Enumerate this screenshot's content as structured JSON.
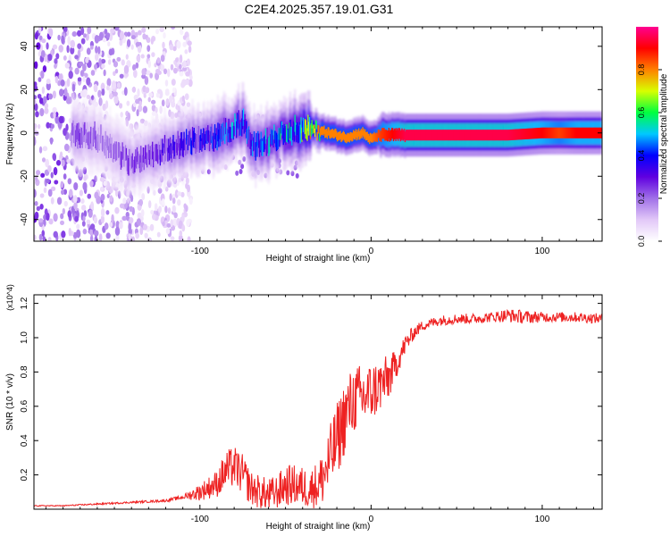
{
  "figure_title": "C2E4.2025.357.19.01.G31",
  "chart_data": [
    {
      "type": "heatmap",
      "title": "C2E4.2025.357.19.01.G31",
      "xlabel": "Height of straight line (km)",
      "ylabel": "Frequency (Hz)",
      "xlim": [
        -197,
        135
      ],
      "ylim": [
        -50,
        49
      ],
      "xticks": [
        -100,
        0,
        100
      ],
      "xtick_labels": [
        "-100",
        "0",
        "100"
      ],
      "yticks": [
        -40,
        -20,
        0,
        20,
        40
      ],
      "ytick_labels": [
        "-40",
        "-20",
        "0",
        "20",
        "40"
      ],
      "colorbar": {
        "label": "Normalized spectral amplitude",
        "range": [
          0.0,
          1.0
        ],
        "ticks": [
          0.0,
          0.2,
          0.4,
          0.6,
          0.8
        ],
        "tick_labels": [
          "0.0",
          "0.2",
          "0.4",
          "0.6",
          "0.8"
        ],
        "colormap": [
          "#ffffff",
          "#e2c8f8",
          "#a070e8",
          "#6000e0",
          "#0000ff",
          "#00c8ff",
          "#00ff40",
          "#d8ff00",
          "#ff8000",
          "#ff0000",
          "#ff0090"
        ]
      },
      "ridge": {
        "x": [
          -175,
          -160,
          -150,
          -140,
          -130,
          -120,
          -110,
          -100,
          -90,
          -80,
          -75,
          -70,
          -60,
          -50,
          -40,
          -30,
          -20,
          -15,
          -10,
          -5,
          0,
          5,
          20,
          40,
          60,
          80,
          100,
          110,
          120,
          135
        ],
        "frequency": [
          0,
          -2,
          -8,
          -14,
          -10,
          -8,
          -5,
          -3,
          -2,
          3,
          5,
          -6,
          -4,
          1,
          2,
          1,
          -1,
          -2,
          -1,
          0,
          -3,
          -1,
          -1,
          -1,
          -1,
          -1,
          0,
          0,
          0,
          0
        ],
        "amplitude": [
          0.25,
          0.2,
          0.2,
          0.25,
          0.25,
          0.3,
          0.35,
          0.35,
          0.4,
          0.45,
          0.45,
          0.4,
          0.45,
          0.5,
          0.6,
          0.8,
          0.8,
          0.8,
          0.8,
          0.8,
          0.8,
          0.85,
          0.95,
          0.95,
          0.95,
          0.95,
          0.9,
          0.85,
          0.9,
          0.9
        ]
      },
      "noise_region": {
        "x_range": [
          -197,
          -105
        ],
        "frequency_range": [
          -50,
          49
        ],
        "amplitude": 0.15
      }
    },
    {
      "type": "line",
      "title": "",
      "xlabel": "Height of straight line (km)",
      "ylabel": "SNR (10 * v/v)",
      "y_scale_label": "(x10^4)",
      "xlim": [
        -197,
        135
      ],
      "ylim": [
        0,
        1.25
      ],
      "xticks": [
        -100,
        0,
        100
      ],
      "xtick_labels": [
        "-100",
        "0",
        "100"
      ],
      "yticks": [
        0.2,
        0.4,
        0.6,
        0.8,
        1.0,
        1.2
      ],
      "ytick_labels": [
        "0.2",
        "0.4",
        "0.6",
        "0.8",
        "1.0",
        "1.2"
      ],
      "series": [
        {
          "name": "SNR",
          "color": "#ee2222",
          "x": [
            -197,
            -180,
            -160,
            -140,
            -120,
            -110,
            -100,
            -90,
            -85,
            -80,
            -75,
            -70,
            -65,
            -60,
            -55,
            -50,
            -45,
            -40,
            -35,
            -30,
            -25,
            -20,
            -15,
            -10,
            -5,
            0,
            5,
            10,
            15,
            20,
            25,
            30,
            40,
            50,
            60,
            70,
            80,
            90,
            100,
            110,
            120,
            135
          ],
          "y": [
            0.02,
            0.02,
            0.03,
            0.04,
            0.05,
            0.07,
            0.1,
            0.15,
            0.22,
            0.25,
            0.2,
            0.12,
            0.1,
            0.08,
            0.1,
            0.14,
            0.14,
            0.13,
            0.12,
            0.15,
            0.26,
            0.4,
            0.55,
            0.64,
            0.65,
            0.68,
            0.72,
            0.76,
            0.85,
            0.96,
            1.03,
            1.07,
            1.1,
            1.11,
            1.11,
            1.12,
            1.13,
            1.12,
            1.12,
            1.12,
            1.12,
            1.11
          ],
          "noise_amplitude": [
            0.003,
            0.003,
            0.005,
            0.005,
            0.008,
            0.012,
            0.05,
            0.08,
            0.12,
            0.12,
            0.12,
            0.1,
            0.1,
            0.1,
            0.1,
            0.12,
            0.12,
            0.12,
            0.12,
            0.15,
            0.2,
            0.22,
            0.22,
            0.2,
            0.2,
            0.18,
            0.16,
            0.14,
            0.08,
            0.06,
            0.04,
            0.03,
            0.03,
            0.03,
            0.03,
            0.03,
            0.04,
            0.04,
            0.03,
            0.03,
            0.03,
            0.03
          ]
        }
      ]
    }
  ]
}
